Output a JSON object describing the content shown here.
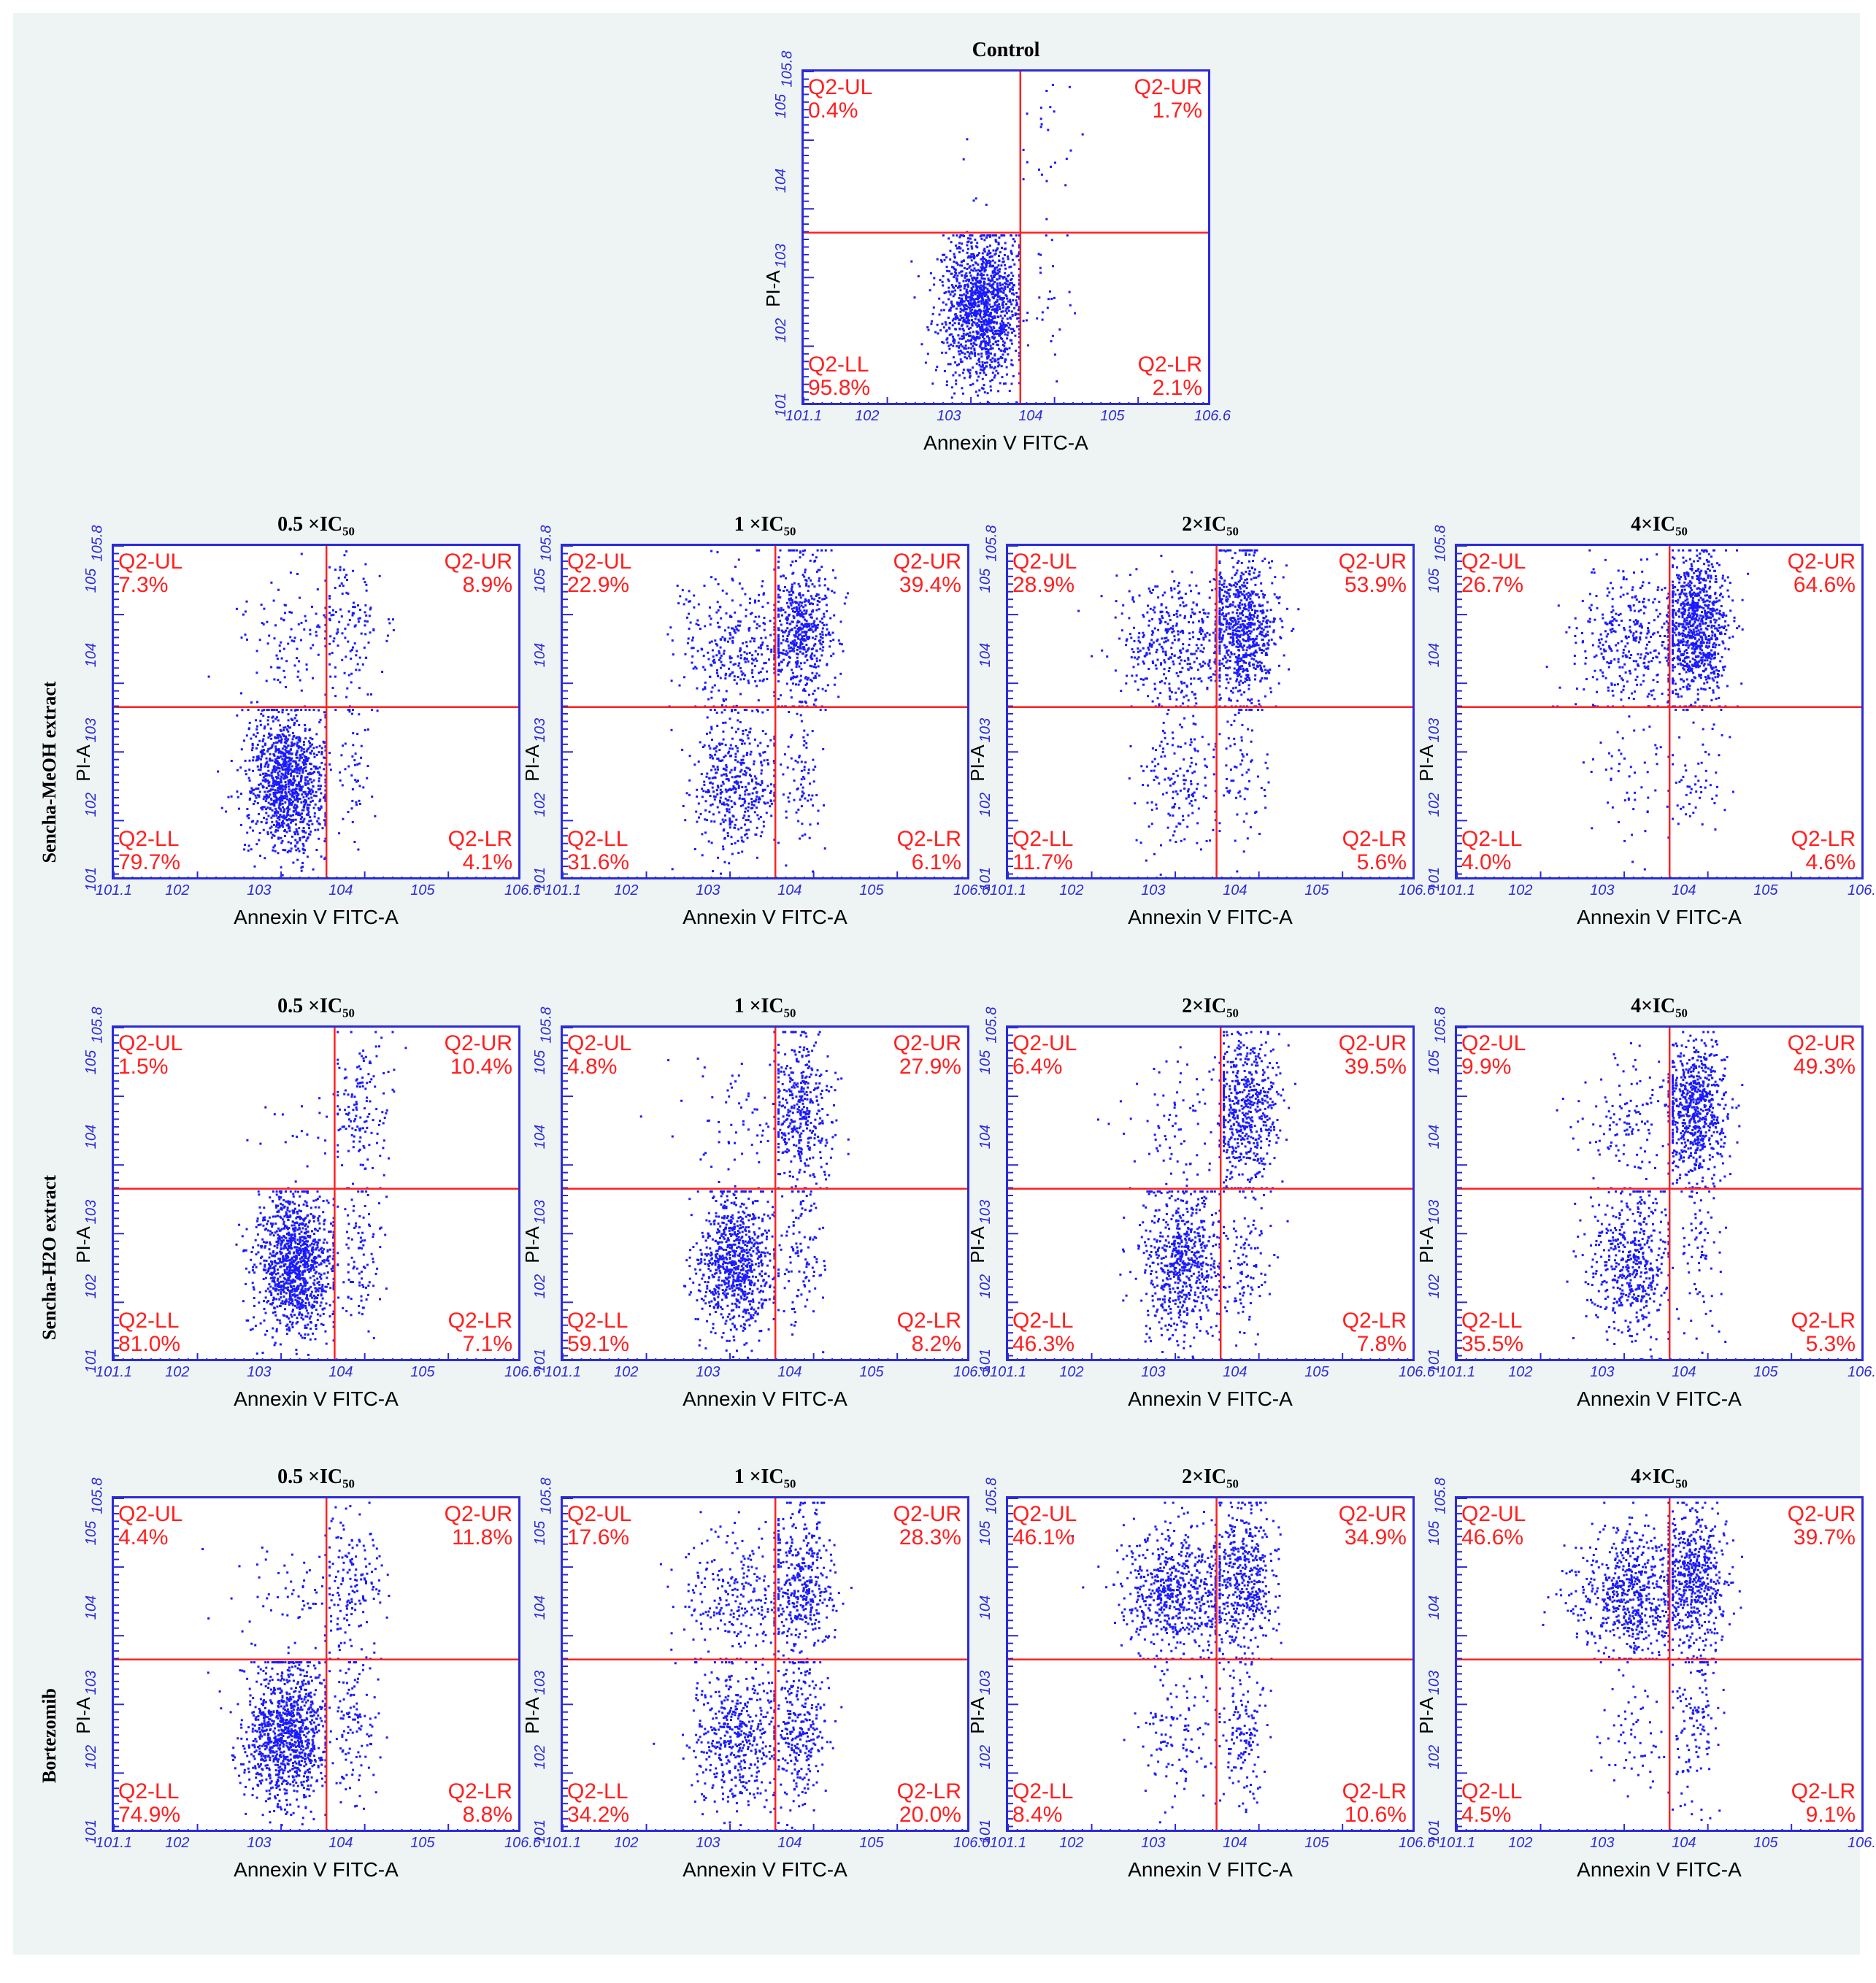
{
  "row_labels": [
    "Sencha-MeOH extract",
    "Sencha-H2O extract",
    "Bortezomib"
  ],
  "colors": {
    "dots": "#1a1aff",
    "gate": "#ff2020",
    "axis": "#2b2bd6"
  },
  "chart_data": [
    {
      "type": "scatter",
      "title": "Control",
      "xlabel": "Annexin V FITC-A",
      "ylabel": "PI-A",
      "x_ticks": [
        "10^1.1",
        "10^2",
        "10^3",
        "10^4",
        "10^5",
        "10^6.6"
      ],
      "y_ticks": [
        "10^1",
        "10^2",
        "10^3",
        "10^4",
        "10^5",
        "10^5.8"
      ],
      "quadrants": {
        "UL": {
          "name": "Q2-UL",
          "percent": "0.4%"
        },
        "UR": {
          "name": "Q2-UR",
          "percent": "1.7%"
        },
        "LL": {
          "name": "Q2-LL",
          "percent": "95.8%"
        },
        "LR": {
          "name": "Q2-LR",
          "percent": "2.1%"
        }
      }
    },
    {
      "type": "scatter",
      "group": "Sencha-MeOH extract",
      "title": "0.5 ×IC50",
      "xlabel": "Annexin V FITC-A",
      "ylabel": "PI-A",
      "quadrants": {
        "UL": {
          "name": "Q2-UL",
          "percent": "7.3%"
        },
        "UR": {
          "name": "Q2-UR",
          "percent": "8.9%"
        },
        "LL": {
          "name": "Q2-LL",
          "percent": "79.7%"
        },
        "LR": {
          "name": "Q2-LR",
          "percent": "4.1%"
        }
      }
    },
    {
      "type": "scatter",
      "group": "Sencha-MeOH extract",
      "title": "1 ×IC50",
      "xlabel": "Annexin V FITC-A",
      "ylabel": "PI-A",
      "quadrants": {
        "UL": {
          "name": "Q2-UL",
          "percent": "22.9%"
        },
        "UR": {
          "name": "Q2-UR",
          "percent": "39.4%"
        },
        "LL": {
          "name": "Q2-LL",
          "percent": "31.6%"
        },
        "LR": {
          "name": "Q2-LR",
          "percent": "6.1%"
        }
      }
    },
    {
      "type": "scatter",
      "group": "Sencha-MeOH extract",
      "title": "2×IC50",
      "xlabel": "Annexin V FITC-A",
      "ylabel": "PI-A",
      "quadrants": {
        "UL": {
          "name": "Q2-UL",
          "percent": "28.9%"
        },
        "UR": {
          "name": "Q2-UR",
          "percent": "53.9%"
        },
        "LL": {
          "name": "Q2-LL",
          "percent": "11.7%"
        },
        "LR": {
          "name": "Q2-LR",
          "percent": "5.6%"
        }
      }
    },
    {
      "type": "scatter",
      "group": "Sencha-MeOH extract",
      "title": "4×IC50",
      "xlabel": "Annexin V FITC-A",
      "ylabel": "PI-A",
      "quadrants": {
        "UL": {
          "name": "Q2-UL",
          "percent": "26.7%"
        },
        "UR": {
          "name": "Q2-UR",
          "percent": "64.6%"
        },
        "LL": {
          "name": "Q2-LL",
          "percent": "4.0%"
        },
        "LR": {
          "name": "Q2-LR",
          "percent": "4.6%"
        }
      }
    },
    {
      "type": "scatter",
      "group": "Sencha-H2O extract",
      "title": "0.5 ×IC50",
      "xlabel": "Annexin V FITC-A",
      "ylabel": "PI-A",
      "quadrants": {
        "UL": {
          "name": "Q2-UL",
          "percent": "1.5%"
        },
        "UR": {
          "name": "Q2-UR",
          "percent": "10.4%"
        },
        "LL": {
          "name": "Q2-LL",
          "percent": "81.0%"
        },
        "LR": {
          "name": "Q2-LR",
          "percent": "7.1%"
        }
      }
    },
    {
      "type": "scatter",
      "group": "Sencha-H2O extract",
      "title": "1 ×IC50",
      "xlabel": "Annexin V FITC-A",
      "ylabel": "PI-A",
      "quadrants": {
        "UL": {
          "name": "Q2-UL",
          "percent": "4.8%"
        },
        "UR": {
          "name": "Q2-UR",
          "percent": "27.9%"
        },
        "LL": {
          "name": "Q2-LL",
          "percent": "59.1%"
        },
        "LR": {
          "name": "Q2-LR",
          "percent": "8.2%"
        }
      }
    },
    {
      "type": "scatter",
      "group": "Sencha-H2O extract",
      "title": "2×IC50",
      "xlabel": "Annexin V FITC-A",
      "ylabel": "PI-A",
      "quadrants": {
        "UL": {
          "name": "Q2-UL",
          "percent": "6.4%"
        },
        "UR": {
          "name": "Q2-UR",
          "percent": "39.5%"
        },
        "LL": {
          "name": "Q2-LL",
          "percent": "46.3%"
        },
        "LR": {
          "name": "Q2-LR",
          "percent": "7.8%"
        }
      }
    },
    {
      "type": "scatter",
      "group": "Sencha-H2O extract",
      "title": "4×IC50",
      "xlabel": "Annexin V FITC-A",
      "ylabel": "PI-A",
      "quadrants": {
        "UL": {
          "name": "Q2-UL",
          "percent": "9.9%"
        },
        "UR": {
          "name": "Q2-UR",
          "percent": "49.3%"
        },
        "LL": {
          "name": "Q2-LL",
          "percent": "35.5%"
        },
        "LR": {
          "name": "Q2-LR",
          "percent": "5.3%"
        }
      }
    },
    {
      "type": "scatter",
      "group": "Bortezomib",
      "title": "0.5 ×IC50",
      "xlabel": "Annexin V FITC-A",
      "ylabel": "PI-A",
      "quadrants": {
        "UL": {
          "name": "Q2-UL",
          "percent": "4.4%"
        },
        "UR": {
          "name": "Q2-UR",
          "percent": "11.8%"
        },
        "LL": {
          "name": "Q2-LL",
          "percent": "74.9%"
        },
        "LR": {
          "name": "Q2-LR",
          "percent": "8.8%"
        }
      }
    },
    {
      "type": "scatter",
      "group": "Bortezomib",
      "title": "1 ×IC50",
      "xlabel": "Annexin V FITC-A",
      "ylabel": "PI-A",
      "quadrants": {
        "UL": {
          "name": "Q2-UL",
          "percent": "17.6%"
        },
        "UR": {
          "name": "Q2-UR",
          "percent": "28.3%"
        },
        "LL": {
          "name": "Q2-LL",
          "percent": "34.2%"
        },
        "LR": {
          "name": "Q2-LR",
          "percent": "20.0%"
        }
      }
    },
    {
      "type": "scatter",
      "group": "Bortezomib",
      "title": "2×IC50",
      "xlabel": "Annexin V FITC-A",
      "ylabel": "PI-A",
      "quadrants": {
        "UL": {
          "name": "Q2-UL",
          "percent": "46.1%"
        },
        "UR": {
          "name": "Q2-UR",
          "percent": "34.9%"
        },
        "LL": {
          "name": "Q2-LL",
          "percent": "8.4%"
        },
        "LR": {
          "name": "Q2-LR",
          "percent": "10.6%"
        }
      }
    },
    {
      "type": "scatter",
      "group": "Bortezomib",
      "title": "4×IC50",
      "xlabel": "Annexin V FITC-A",
      "ylabel": "PI-A",
      "quadrants": {
        "UL": {
          "name": "Q2-UL",
          "percent": "46.6%"
        },
        "UR": {
          "name": "Q2-UR",
          "percent": "39.7%"
        },
        "LL": {
          "name": "Q2-LL",
          "percent": "4.5%"
        },
        "LR": {
          "name": "Q2-LR",
          "percent": "9.1%"
        }
      }
    }
  ]
}
